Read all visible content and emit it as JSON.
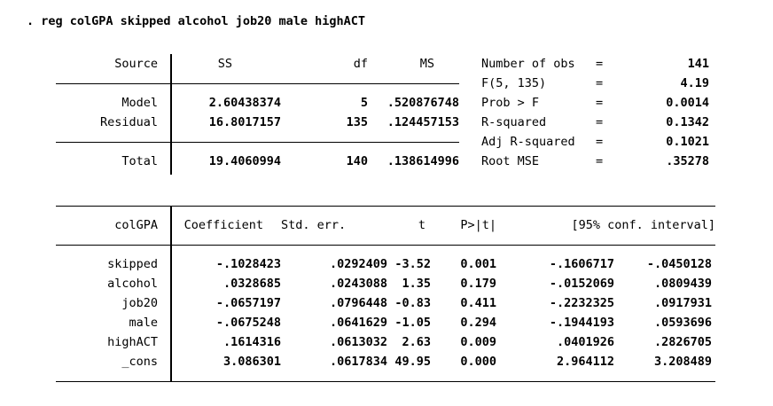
{
  "command": ". reg colGPA skipped alcohol job20 male highACT",
  "anova": {
    "headers": {
      "source": "Source",
      "ss": "SS",
      "df": "df",
      "ms": "MS"
    },
    "rows": [
      {
        "label": "Model",
        "ss": "2.60438374",
        "df": "5",
        "ms": ".520876748"
      },
      {
        "label": "Residual",
        "ss": "16.8017157",
        "df": "135",
        "ms": ".124457153"
      },
      {
        "label": "Total",
        "ss": "19.4060994",
        "df": "140",
        "ms": ".138614996"
      }
    ]
  },
  "stats": [
    {
      "label": "Number of obs",
      "eq": "=",
      "value": "141"
    },
    {
      "label": "F(5, 135)",
      "eq": "=",
      "value": "4.19"
    },
    {
      "label": "Prob > F",
      "eq": "=",
      "value": "0.0014"
    },
    {
      "label": "R-squared",
      "eq": "=",
      "value": "0.1342"
    },
    {
      "label": "Adj R-squared",
      "eq": "=",
      "value": "0.1021"
    },
    {
      "label": "Root MSE",
      "eq": "=",
      "value": ".35278"
    }
  ],
  "coef_table": {
    "headers": {
      "depvar": "colGPA",
      "coef": "Coefficient",
      "se": "Std. err.",
      "t": "t",
      "p": "P>|t|",
      "ci": "[95% conf. interval]"
    },
    "rows": [
      {
        "var": "skipped",
        "coef": "-.1028423",
        "se": ".0292409",
        "t": "-3.52",
        "p": "0.001",
        "ci_low": "-.1606717",
        "ci_high": "-.0450128"
      },
      {
        "var": "alcohol",
        "coef": ".0328685",
        "se": ".0243088",
        "t": "1.35",
        "p": "0.179",
        "ci_low": "-.0152069",
        "ci_high": ".0809439"
      },
      {
        "var": "job20",
        "coef": "-.0657197",
        "se": ".0796448",
        "t": "-0.83",
        "p": "0.411",
        "ci_low": "-.2232325",
        "ci_high": ".0917931"
      },
      {
        "var": "male",
        "coef": "-.0675248",
        "se": ".0641629",
        "t": "-1.05",
        "p": "0.294",
        "ci_low": "-.1944193",
        "ci_high": ".0593696"
      },
      {
        "var": "highACT",
        "coef": ".1614316",
        "se": ".0613032",
        "t": "2.63",
        "p": "0.009",
        "ci_low": ".0401926",
        "ci_high": ".2826705"
      },
      {
        "var": "_cons",
        "coef": "3.086301",
        "se": ".0617834",
        "t": "49.95",
        "p": "0.000",
        "ci_low": "2.964112",
        "ci_high": "3.208489"
      }
    ]
  },
  "colors": {
    "text": "#000000",
    "background": "#ffffff",
    "rule": "#000000"
  }
}
